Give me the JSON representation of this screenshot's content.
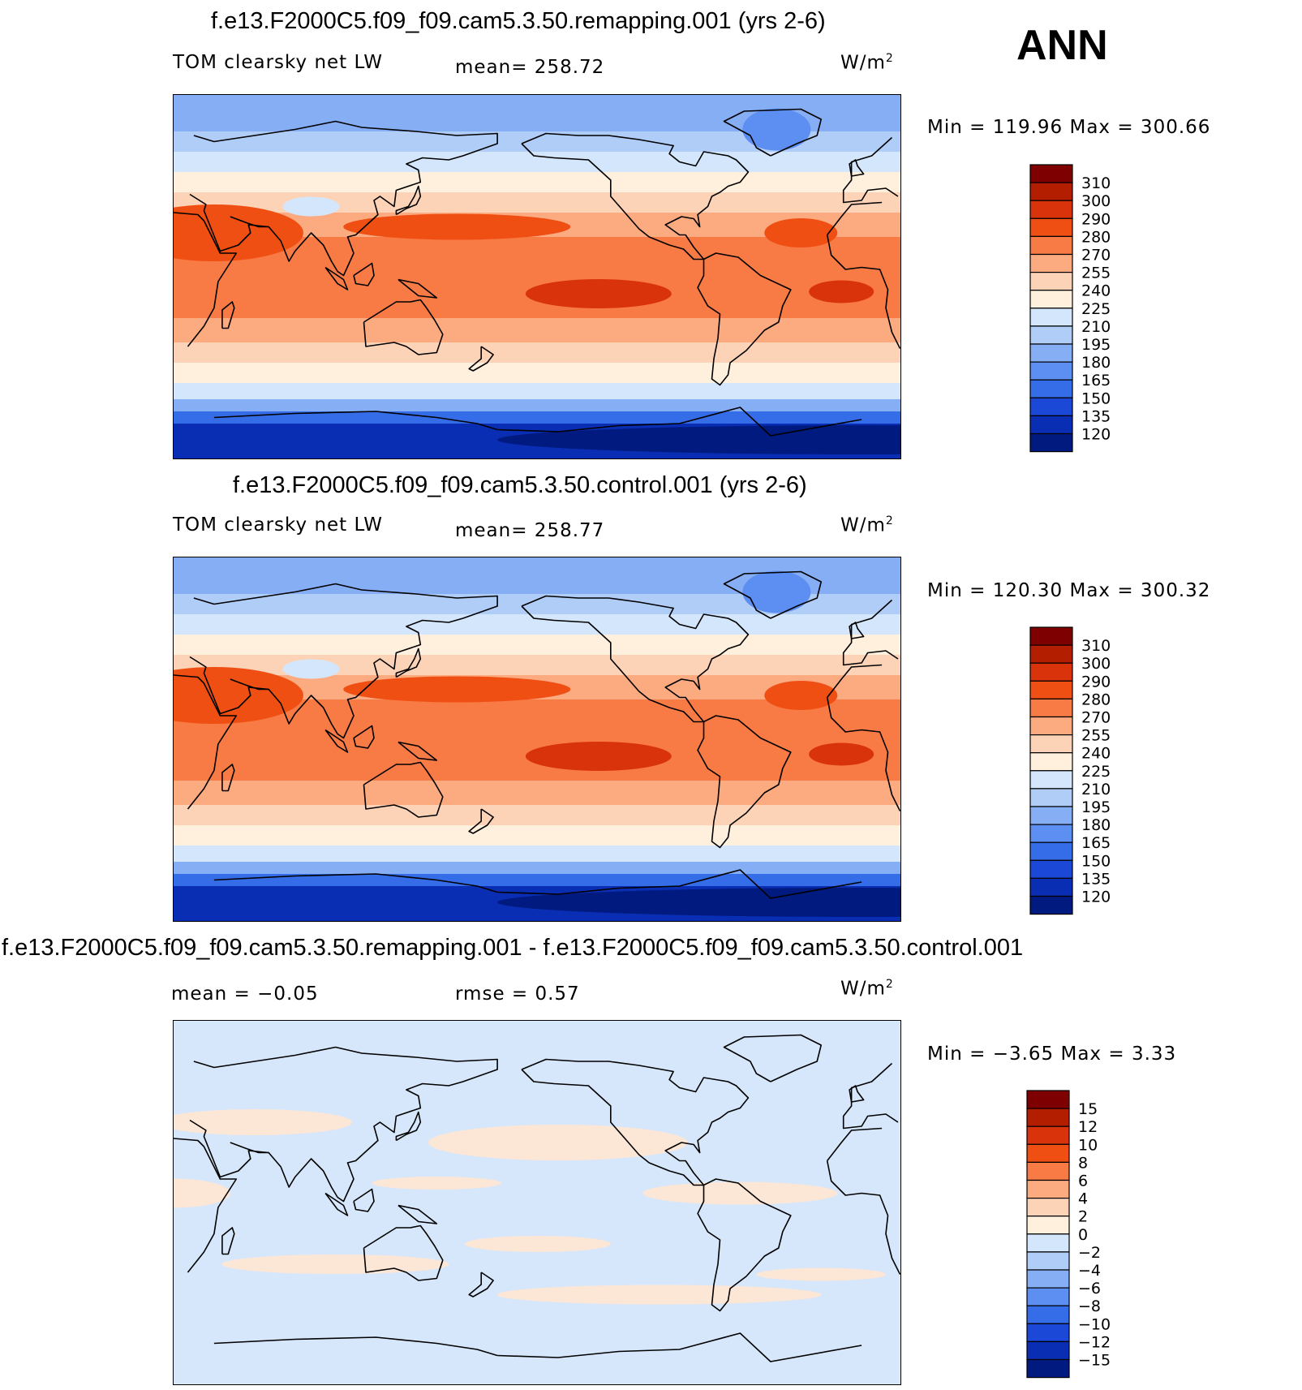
{
  "season": "ANN",
  "panels": [
    {
      "title": "f.e13.F2000C5.f09_f09.cam5.3.50.remapping.001 (yrs 2-6)",
      "left_label": "TOM clearsky net LW",
      "center_label": "mean= 258.72",
      "units": "W/m",
      "units_sup": "2",
      "minmax": "Min  =  119.96  Max  =  300.66",
      "style": "abs"
    },
    {
      "title": "f.e13.F2000C5.f09_f09.cam5.3.50.control.001 (yrs 2-6)",
      "left_label": "TOM clearsky net LW",
      "center_label": "mean= 258.77",
      "units": "W/m",
      "units_sup": "2",
      "minmax": "Min  =  120.30  Max  =  300.32",
      "style": "abs"
    },
    {
      "title": "f.e13.F2000C5.f09_f09.cam5.3.50.remapping.001 - f.e13.F2000C5.f09_f09.cam5.3.50.control.001",
      "left_label": "mean  =    −0.05",
      "center_label": "rmse  =     0.57",
      "units": "W/m",
      "units_sup": "2",
      "minmax": "Min  =    −3.65  Max  =      3.33",
      "style": "diff"
    }
  ],
  "chart_data": [
    {
      "type": "heatmap",
      "title": "f.e13.F2000C5.f09_f09.cam5.3.50.remapping.001 (yrs 2-6)",
      "variable": "TOM clearsky net LW",
      "units": "W/m2",
      "mean": 258.72,
      "min": 119.96,
      "max": 300.66,
      "colorbar_levels": [
        "310",
        "300",
        "290",
        "280",
        "270",
        "255",
        "240",
        "225",
        "210",
        "195",
        "180",
        "165",
        "150",
        "135",
        "120"
      ],
      "colorbar_colors": [
        "#7f0000",
        "#b31d00",
        "#d8330a",
        "#ef4f12",
        "#f87a45",
        "#fcaa80",
        "#fdd3b8",
        "#fff0dd",
        "#d3e6fb",
        "#b0cdf7",
        "#86aef5",
        "#5d8ef2",
        "#356ce8",
        "#1b48d6",
        "#0a2eb3",
        "#001a80"
      ]
    },
    {
      "type": "heatmap",
      "title": "f.e13.F2000C5.f09_f09.cam5.3.50.control.001 (yrs 2-6)",
      "variable": "TOM clearsky net LW",
      "units": "W/m2",
      "mean": 258.77,
      "min": 120.3,
      "max": 300.32,
      "colorbar_levels": [
        "310",
        "300",
        "290",
        "280",
        "270",
        "255",
        "240",
        "225",
        "210",
        "195",
        "180",
        "165",
        "150",
        "135",
        "120"
      ],
      "colorbar_colors": [
        "#7f0000",
        "#b31d00",
        "#d8330a",
        "#ef4f12",
        "#f87a45",
        "#fcaa80",
        "#fdd3b8",
        "#fff0dd",
        "#d3e6fb",
        "#b0cdf7",
        "#86aef5",
        "#5d8ef2",
        "#356ce8",
        "#1b48d6",
        "#0a2eb3",
        "#001a80"
      ]
    },
    {
      "type": "heatmap",
      "title": "f.e13.F2000C5.f09_f09.cam5.3.50.remapping.001 - f.e13.F2000C5.f09_f09.cam5.3.50.control.001",
      "units": "W/m2",
      "mean": -0.05,
      "rmse": 0.57,
      "min": -3.65,
      "max": 3.33,
      "colorbar_levels": [
        "15",
        "12",
        "10",
        "8",
        "6",
        "4",
        "2",
        "0",
        "−2",
        "−4",
        "−6",
        "−8",
        "−10",
        "−12",
        "−15"
      ],
      "colorbar_colors": [
        "#7f0000",
        "#b31d00",
        "#d8330a",
        "#ef4f12",
        "#f87a45",
        "#fcaa80",
        "#fdd3b8",
        "#fff0dd",
        "#d3e6fb",
        "#b0cdf7",
        "#86aef5",
        "#5d8ef2",
        "#356ce8",
        "#1b48d6",
        "#0a2eb3",
        "#001a80"
      ]
    }
  ]
}
